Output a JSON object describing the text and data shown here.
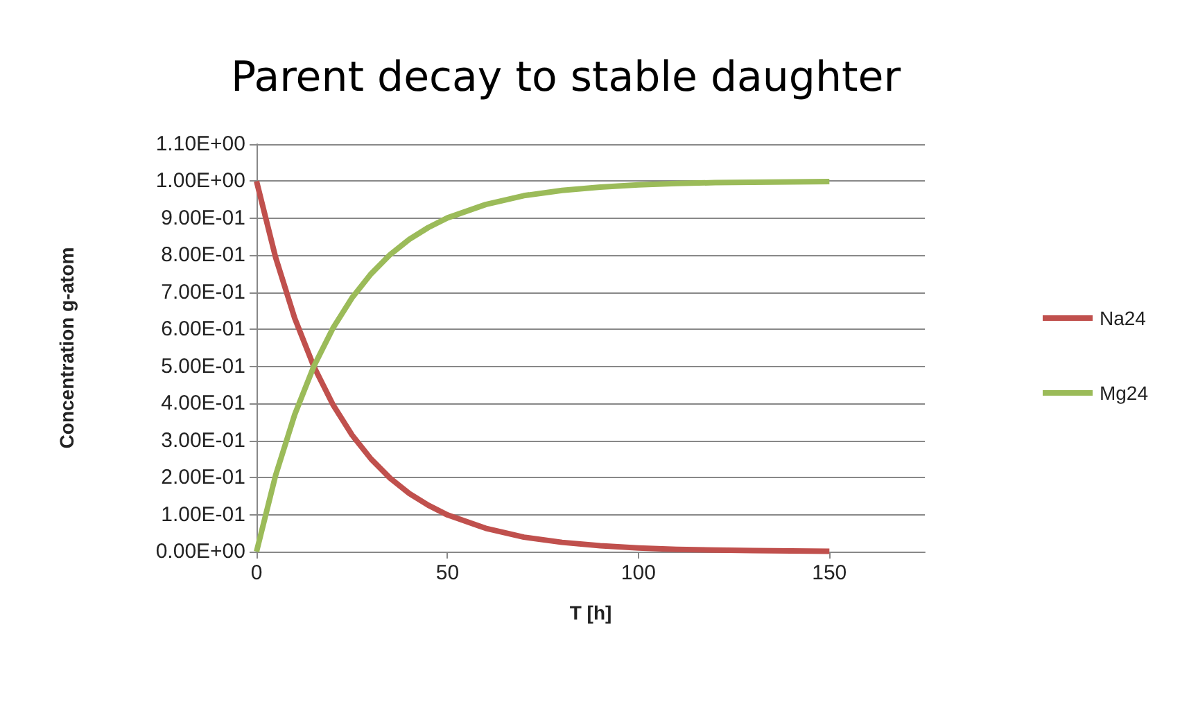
{
  "chart_data": {
    "type": "line",
    "title": "Parent decay to stable daughter",
    "xlabel": "T [h]",
    "ylabel": "Concentration g-atom",
    "x": [
      0,
      5,
      10,
      15,
      20,
      25,
      30,
      35,
      40,
      45,
      50,
      60,
      70,
      80,
      90,
      100,
      110,
      120,
      130,
      140,
      150
    ],
    "series": [
      {
        "name": "Na24",
        "color": "#c0504d",
        "values": [
          1,
          0.794,
          0.63,
          0.5,
          0.397,
          0.315,
          0.25,
          0.198,
          0.157,
          0.125,
          0.099,
          0.063,
          0.039,
          0.025,
          0.016,
          0.01,
          0.006,
          0.004,
          0.003,
          0.002,
          0.001
        ]
      },
      {
        "name": "Mg24",
        "color": "#9bbb59",
        "values": [
          0,
          0.206,
          0.37,
          0.5,
          0.603,
          0.685,
          0.75,
          0.802,
          0.843,
          0.875,
          0.901,
          0.937,
          0.961,
          0.975,
          0.984,
          0.99,
          0.994,
          0.996,
          0.997,
          0.998,
          0.999
        ]
      }
    ],
    "xlim": [
      0,
      175
    ],
    "xticks": [
      0,
      50,
      100,
      150
    ],
    "ylim": [
      0,
      1.1
    ],
    "yticks": [
      {
        "value": 0,
        "label": "0.00E+00"
      },
      {
        "value": 0.1,
        "label": "1.00E-01"
      },
      {
        "value": 0.2,
        "label": "2.00E-01"
      },
      {
        "value": 0.3,
        "label": "3.00E-01"
      },
      {
        "value": 0.4,
        "label": "4.00E-01"
      },
      {
        "value": 0.5,
        "label": "5.00E-01"
      },
      {
        "value": 0.6,
        "label": "6.00E-01"
      },
      {
        "value": 0.7,
        "label": "7.00E-01"
      },
      {
        "value": 0.8,
        "label": "8.00E-01"
      },
      {
        "value": 0.9,
        "label": "9.00E-01"
      },
      {
        "value": 1,
        "label": "1.00E+00"
      },
      {
        "value": 1.1,
        "label": "1.10E+00"
      }
    ],
    "grid": "y",
    "legend": "right",
    "marker": "none",
    "line_style": "solid"
  }
}
